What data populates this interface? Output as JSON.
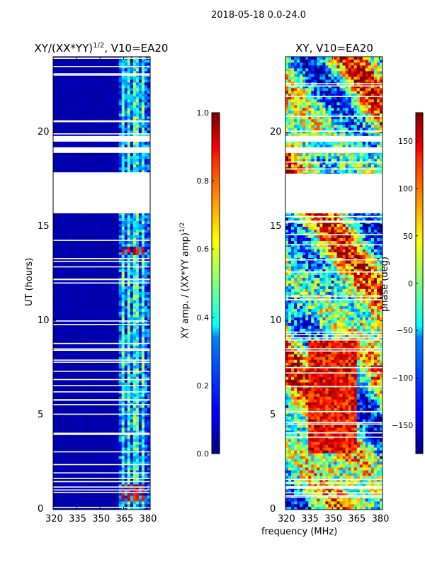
{
  "figure": {
    "suptitle": "2018-05-18 0.0-24.0"
  },
  "chart_data": [
    {
      "type": "heatmap",
      "title": "XY/(XX*YY)",
      "title_exponent": "1/2",
      "title_suffix": ", V10=EA20",
      "xlabel": "",
      "ylabel": "UT (hours)",
      "xlim": [
        320,
        382
      ],
      "ylim": [
        0,
        24
      ],
      "x_ticks": [
        320,
        335,
        350,
        365,
        380
      ],
      "y_ticks": [
        0,
        5,
        10,
        15,
        20
      ],
      "colormap": "jet",
      "colorbar": {
        "label": "XY amp. / (XX*YY amp)",
        "label_exponent": "1/2",
        "range": [
          0.0,
          1.0
        ],
        "ticks": [
          "0.0",
          "0.2",
          "0.4",
          "0.6",
          "0.8",
          "1.0"
        ]
      },
      "data_gaps_hours": [
        [
          15.7,
          17.8
        ],
        [
          18.9,
          19.2
        ],
        [
          19.5,
          19.8
        ]
      ],
      "bright_channel_bands_mhz": [
        [
          363,
          366
        ],
        [
          367,
          370
        ],
        [
          371,
          374
        ],
        [
          376,
          379
        ]
      ]
    },
    {
      "type": "heatmap",
      "title": "XY, V10=EA20",
      "xlabel": "frequency (MHz)",
      "ylabel": "",
      "xlim": [
        320,
        382
      ],
      "ylim": [
        0,
        24
      ],
      "x_ticks": [
        320,
        335,
        350,
        365,
        380
      ],
      "y_ticks": [
        0,
        5,
        10,
        15,
        20
      ],
      "colormap": "jet",
      "colorbar": {
        "label": "phase (deg)",
        "range": [
          -180,
          180
        ],
        "ticks": [
          "−150",
          "−100",
          "−50",
          "0",
          "50",
          "100",
          "150"
        ]
      },
      "data_gaps_hours": [
        [
          15.7,
          17.8
        ],
        [
          18.9,
          19.2
        ],
        [
          19.5,
          19.8
        ]
      ]
    }
  ]
}
